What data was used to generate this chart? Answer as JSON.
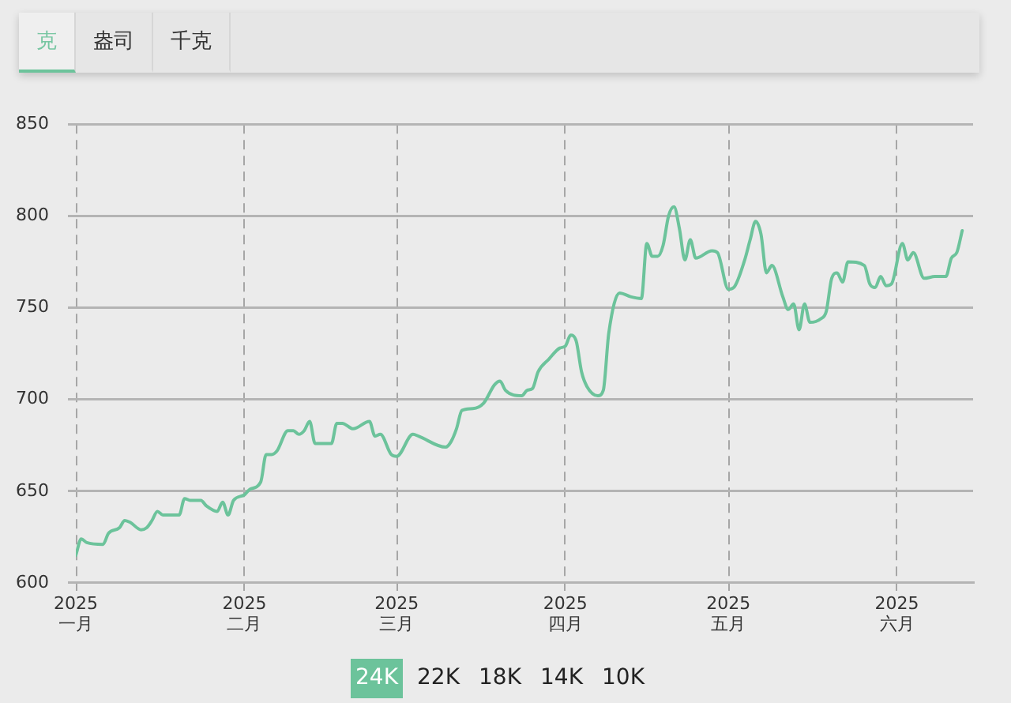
{
  "chart_data": [
    {
      "type": "other",
      "annotations": [
        "克",
        "盎司",
        "千克"
      ]
    },
    {
      "type": "line",
      "color": "#6cc39b",
      "x": [
        "2025-01-01",
        "2025-01-02",
        "2025-01-03",
        "2025-01-06",
        "2025-01-07",
        "2025-01-09",
        "2025-01-10",
        "2025-01-11",
        "2025-01-13",
        "2025-01-14",
        "2025-01-15",
        "2025-01-16",
        "2025-01-17",
        "2025-01-20",
        "2025-01-21",
        "2025-01-22",
        "2025-01-24",
        "2025-01-25",
        "2025-01-27",
        "2025-01-28",
        "2025-01-29",
        "2025-01-30",
        "2025-02-01",
        "2025-02-02",
        "2025-02-04",
        "2025-02-05",
        "2025-02-06",
        "2025-02-07",
        "2025-02-09",
        "2025-02-10",
        "2025-02-11",
        "2025-02-12",
        "2025-02-13",
        "2025-02-14",
        "2025-02-17",
        "2025-02-18",
        "2025-02-19",
        "2025-02-21",
        "2025-02-24",
        "2025-02-25",
        "2025-02-26",
        "2025-02-28",
        "2025-03-01",
        "2025-03-04",
        "2025-03-05",
        "2025-03-10",
        "2025-03-11",
        "2025-03-12",
        "2025-03-13",
        "2025-03-15",
        "2025-03-17",
        "2025-03-19",
        "2025-03-20",
        "2025-03-21",
        "2025-03-24",
        "2025-03-25",
        "2025-03-26",
        "2025-03-27",
        "2025-03-29",
        "2025-03-31",
        "2025-04-01",
        "2025-04-02",
        "2025-04-03",
        "2025-04-04",
        "2025-04-05",
        "2025-04-07",
        "2025-04-08",
        "2025-04-09",
        "2025-04-11",
        "2025-04-13",
        "2025-04-15",
        "2025-04-16",
        "2025-04-17",
        "2025-04-18",
        "2025-04-19",
        "2025-04-20",
        "2025-04-21",
        "2025-04-22",
        "2025-04-23",
        "2025-04-24",
        "2025-04-25",
        "2025-04-28",
        "2025-04-29",
        "2025-05-01",
        "2025-05-02",
        "2025-05-04",
        "2025-05-05",
        "2025-05-06",
        "2025-05-07",
        "2025-05-08",
        "2025-05-09",
        "2025-05-11",
        "2025-05-12",
        "2025-05-13",
        "2025-05-14",
        "2025-05-15",
        "2025-05-16",
        "2025-05-18",
        "2025-05-19",
        "2025-05-20",
        "2025-05-21",
        "2025-05-22",
        "2025-05-23",
        "2025-05-26",
        "2025-05-27",
        "2025-05-28",
        "2025-05-29",
        "2025-05-30",
        "2025-05-31",
        "2025-06-02",
        "2025-06-03",
        "2025-06-04",
        "2025-06-06",
        "2025-06-08",
        "2025-06-10",
        "2025-06-11",
        "2025-06-12",
        "2025-06-13"
      ],
      "values": [
        615,
        624,
        622,
        621,
        627,
        630,
        634,
        633,
        629,
        630,
        634,
        639,
        637,
        637,
        646,
        645,
        645,
        642,
        639,
        644,
        637,
        645,
        648,
        651,
        655,
        670,
        670,
        672,
        683,
        683,
        681,
        683,
        688,
        676,
        676,
        687,
        687,
        684,
        688,
        680,
        681,
        670,
        669,
        681,
        680,
        674,
        677,
        684,
        694,
        695,
        698,
        708,
        710,
        705,
        702,
        705,
        706,
        715,
        722,
        728,
        729,
        735,
        732,
        715,
        707,
        702,
        705,
        736,
        758,
        756,
        755,
        785,
        778,
        778,
        784,
        800,
        805,
        793,
        776,
        787,
        777,
        781,
        780,
        760,
        761,
        776,
        787,
        797,
        790,
        769,
        773,
        756,
        749,
        752,
        738,
        752,
        742,
        744,
        748,
        766,
        769,
        764,
        775,
        773,
        763,
        761,
        767,
        762,
        763,
        785,
        776,
        780,
        766,
        767,
        767,
        777,
        780,
        792
      ],
      "xlim": [
        "2025-01-01",
        "2025-06-15"
      ],
      "xticks": [
        {
          "value": "2025-01-01",
          "label": "2025\n一月"
        },
        {
          "value": "2025-02-01",
          "label": "2025\n二月"
        },
        {
          "value": "2025-03-01",
          "label": "2025\n三月"
        },
        {
          "value": "2025-04-01",
          "label": "2025\n四月"
        },
        {
          "value": "2025-05-01",
          "label": "2025\n五月"
        },
        {
          "value": "2025-06-01",
          "label": "2025\n六月"
        }
      ],
      "ylim": [
        600,
        850
      ],
      "yticks": [
        600,
        650,
        700,
        750,
        800,
        850
      ],
      "grid": true
    },
    {
      "type": "other",
      "annotations": [
        "24K",
        "22K",
        "18K",
        "14K",
        "10K"
      ]
    }
  ]
}
